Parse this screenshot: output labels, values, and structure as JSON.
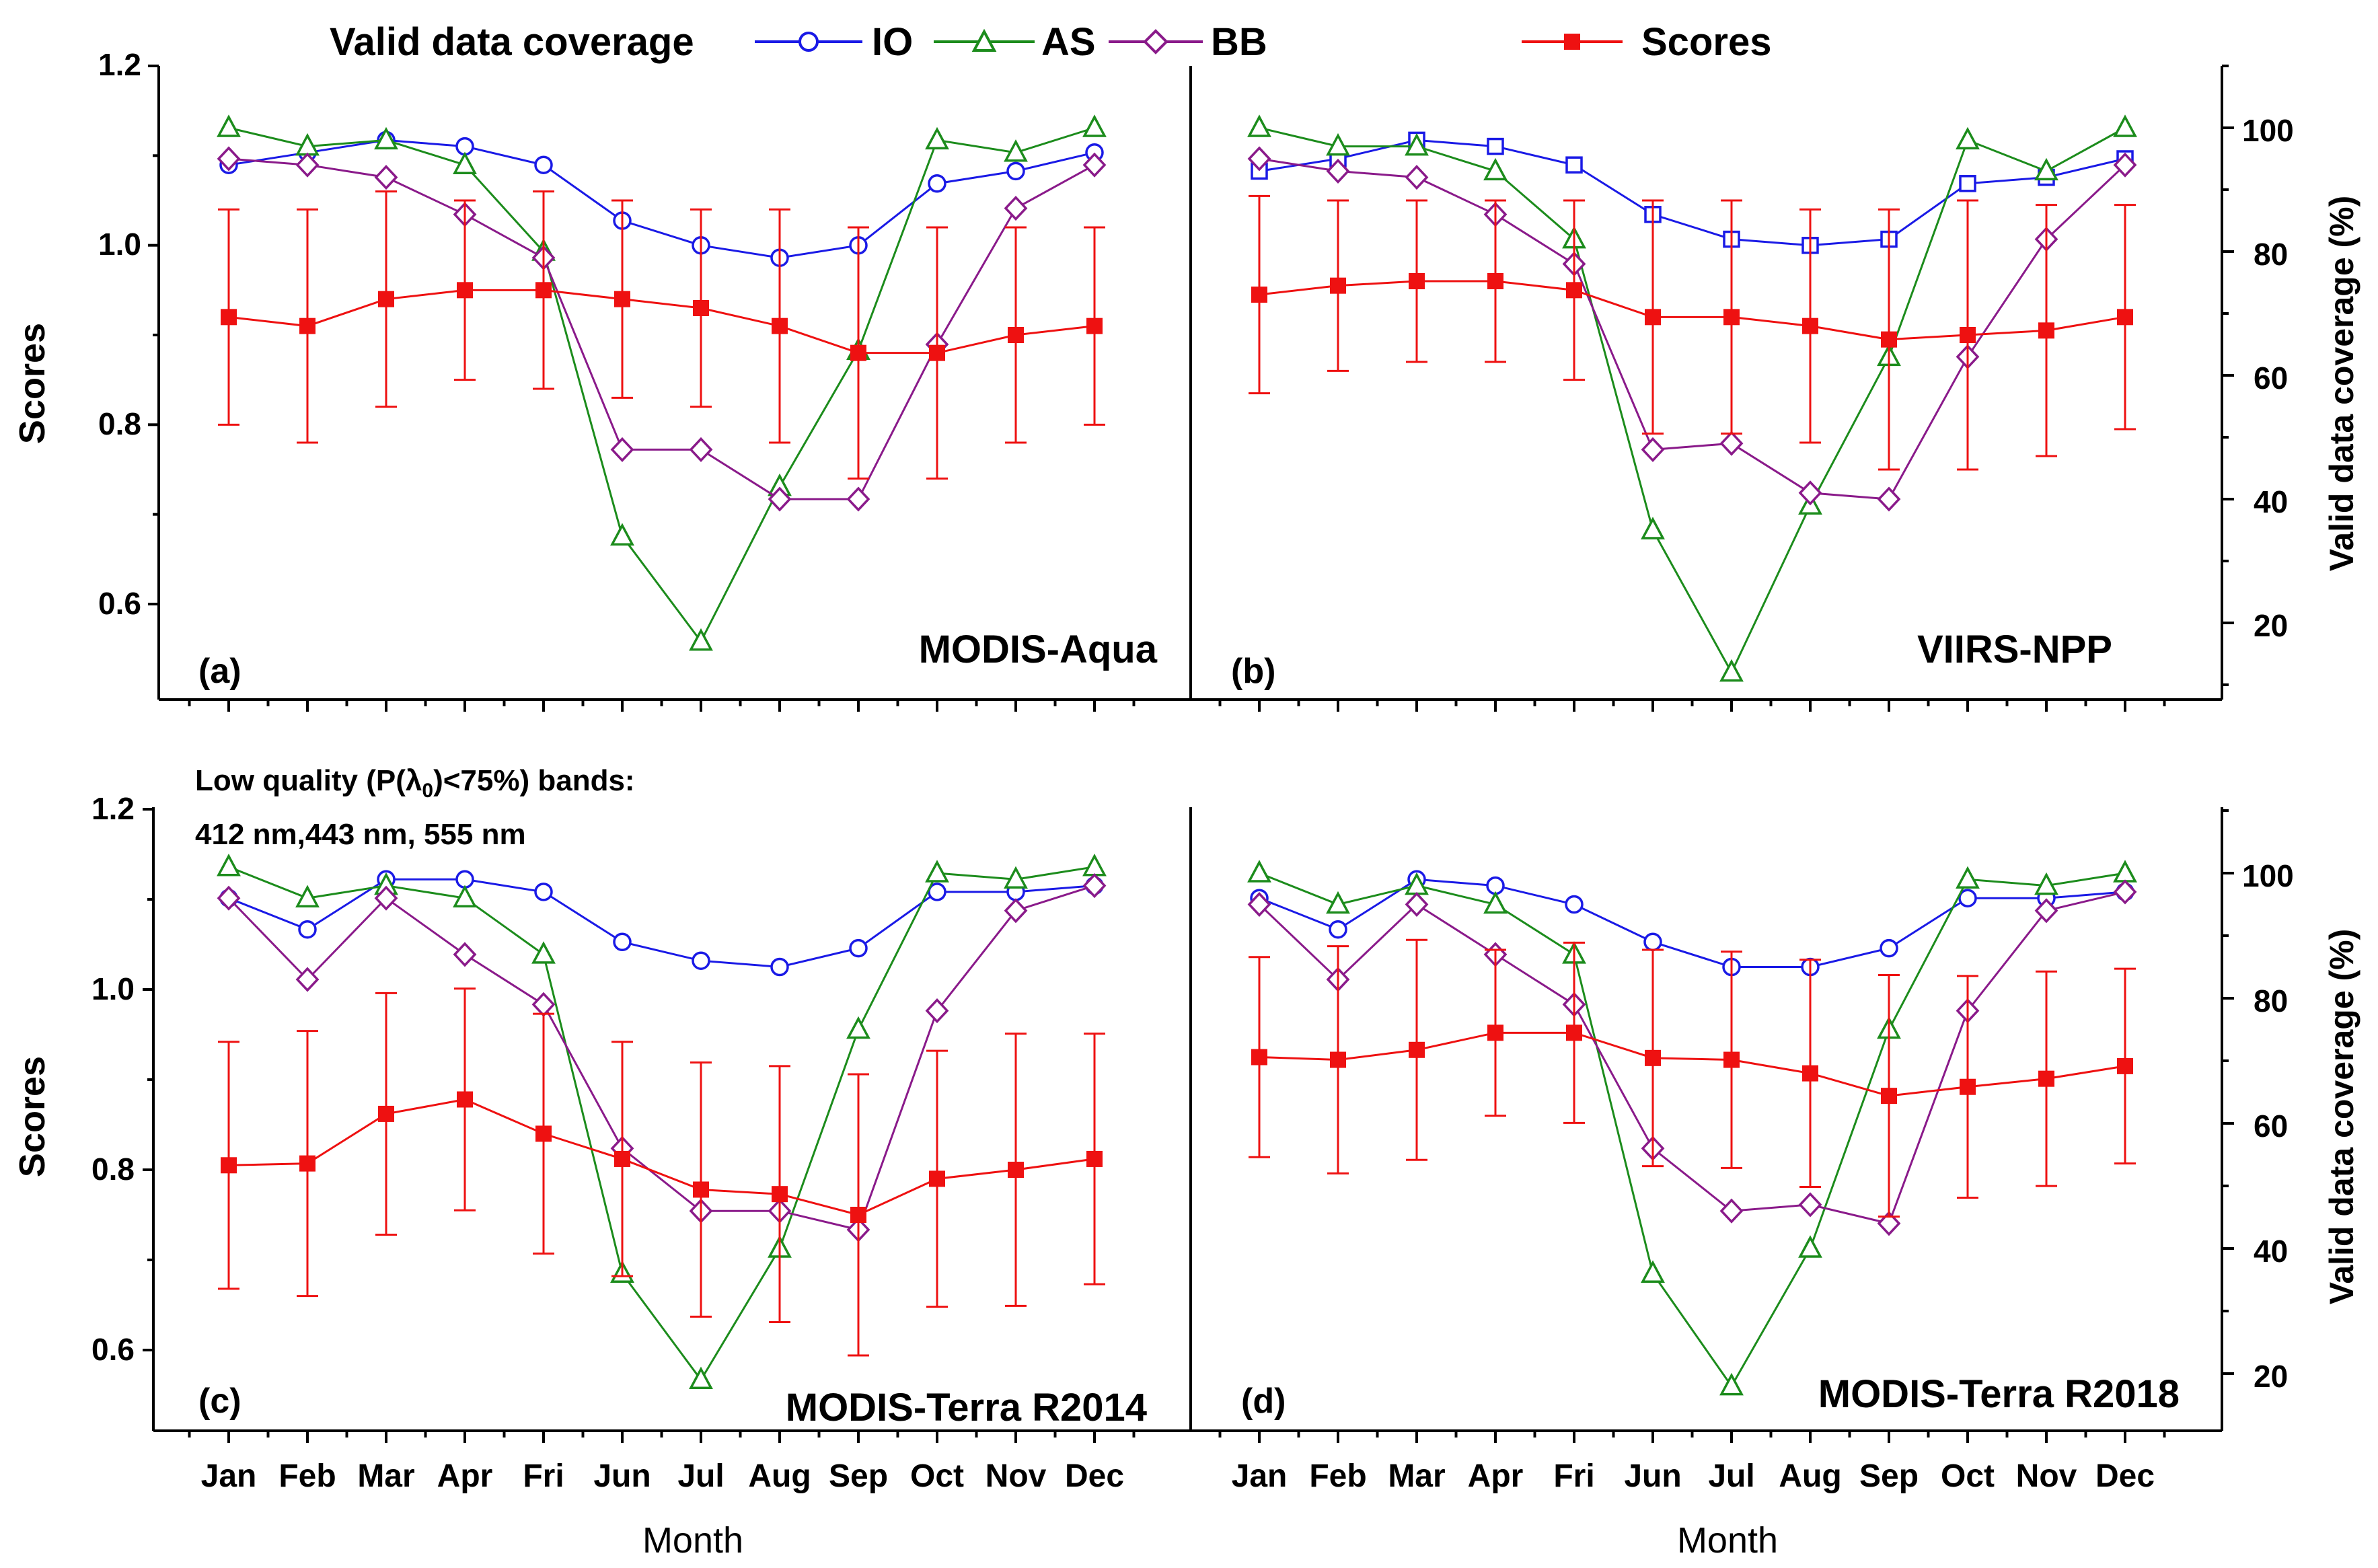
{
  "legend": {
    "coverage_label": "Valid data coverage",
    "scores_label": "Scores",
    "series": [
      {
        "key": "IO",
        "label": "IO",
        "color": "#1a1ae6",
        "marker": "circle"
      },
      {
        "key": "AS",
        "label": "AS",
        "color": "#1c8c1c",
        "marker": "triangle"
      },
      {
        "key": "BB",
        "label": "BB",
        "color": "#8a1a8a",
        "marker": "diamond"
      }
    ],
    "scores_color": "#ee1111"
  },
  "axes": {
    "left_label": "Scores",
    "right_label": "Valid data coverage (%)",
    "x_label": "Month",
    "left_ticks": [
      "0.6",
      "0.8",
      "1.0",
      "1.2"
    ],
    "right_ticks": [
      "20",
      "40",
      "60",
      "80",
      "100"
    ]
  },
  "months": [
    "Jan",
    "Feb",
    "Mar",
    "Apr",
    "Fri",
    "Jun",
    "Jul",
    "Aug",
    "Sep",
    "Oct",
    "Nov",
    "Dec"
  ],
  "note": {
    "line1_prefix": "Low quality (P(",
    "lambda": "λ",
    "subscript": "0",
    "line1_suffix": ")<75%) bands:",
    "line2": "412 nm,443 nm, 555 nm"
  },
  "chart_data": [
    {
      "type": "line",
      "panel": "(a)",
      "title": "MODIS-Aqua",
      "categories": [
        "Jan",
        "Feb",
        "Mar",
        "Apr",
        "Fri",
        "Jun",
        "Jul",
        "Aug",
        "Sep",
        "Oct",
        "Nov",
        "Dec"
      ],
      "ylim_left": [
        0.5,
        1.2
      ],
      "ylim_right": [
        10,
        110
      ],
      "scores": {
        "values": [
          0.92,
          0.91,
          0.94,
          0.95,
          0.95,
          0.94,
          0.93,
          0.91,
          0.88,
          0.88,
          0.9,
          0.91
        ],
        "error": [
          0.12,
          0.13,
          0.12,
          0.1,
          0.11,
          0.11,
          0.11,
          0.13,
          0.14,
          0.14,
          0.12,
          0.11
        ]
      },
      "coverage": {
        "IO": [
          94,
          96,
          98,
          97,
          94,
          85,
          81,
          79,
          81,
          91,
          93,
          96
        ],
        "AS": [
          100,
          97,
          98,
          94,
          80,
          34,
          17,
          42,
          64,
          98,
          96,
          100
        ],
        "BB": [
          95,
          94,
          92,
          86,
          79,
          48,
          48,
          40,
          40,
          65,
          87,
          94
        ]
      }
    },
    {
      "type": "line",
      "panel": "(b)",
      "title": "VIIRS-NPP",
      "categories": [
        "Jan",
        "Feb",
        "Mar",
        "Apr",
        "Fri",
        "Jun",
        "Jul",
        "Aug",
        "Sep",
        "Oct",
        "Nov",
        "Dec"
      ],
      "ylim_left": [
        0.5,
        1.2
      ],
      "ylim_right": [
        10,
        110
      ],
      "scores": {
        "values": [
          0.945,
          0.955,
          0.96,
          0.96,
          0.95,
          0.92,
          0.92,
          0.91,
          0.895,
          0.9,
          0.905,
          0.92
        ],
        "error": [
          0.11,
          0.095,
          0.09,
          0.09,
          0.1,
          0.13,
          0.13,
          0.13,
          0.145,
          0.15,
          0.14,
          0.125
        ]
      },
      "coverage": {
        "IO": [
          93,
          95,
          98,
          97,
          94,
          86,
          82,
          81,
          82,
          91,
          92,
          95
        ],
        "AS": [
          100,
          97,
          97,
          93,
          82,
          35,
          12,
          39,
          63,
          98,
          93,
          100
        ],
        "BB": [
          95,
          93,
          92,
          86,
          78,
          48,
          49,
          41,
          40,
          63,
          82,
          94
        ]
      }
    },
    {
      "type": "line",
      "panel": "(c)",
      "title": "MODIS-Terra R2014",
      "categories": [
        "Jan",
        "Feb",
        "Mar",
        "Apr",
        "Fri",
        "Jun",
        "Jul",
        "Aug",
        "Sep",
        "Oct",
        "Nov",
        "Dec"
      ],
      "ylim_left": [
        0.5,
        1.2
      ],
      "ylim_right": [
        10,
        110
      ],
      "scores": {
        "values": [
          0.805,
          0.807,
          0.862,
          0.878,
          0.84,
          0.812,
          0.778,
          0.773,
          0.75,
          0.79,
          0.8,
          0.812
        ],
        "error": [
          0.137,
          0.147,
          0.134,
          0.123,
          0.133,
          0.13,
          0.141,
          0.142,
          0.156,
          0.142,
          0.151,
          0.139
        ]
      },
      "coverage": {
        "IO": [
          96,
          91,
          99,
          99,
          97,
          89,
          86,
          85,
          88,
          97,
          97,
          98
        ],
        "AS": [
          101,
          96,
          98,
          96,
          87,
          36,
          19,
          40,
          75,
          100,
          99,
          101
        ],
        "BB": [
          96,
          83,
          96,
          87,
          79,
          56,
          46,
          46,
          43,
          78,
          94,
          98
        ]
      }
    },
    {
      "type": "line",
      "panel": "(d)",
      "title": "MODIS-Terra R2018",
      "categories": [
        "Jan",
        "Feb",
        "Mar",
        "Apr",
        "Fri",
        "Jun",
        "Jul",
        "Aug",
        "Sep",
        "Oct",
        "Nov",
        "Dec"
      ],
      "ylim_left": [
        0.5,
        1.2
      ],
      "ylim_right": [
        10,
        110
      ],
      "scores": {
        "values": [
          0.925,
          0.922,
          0.933,
          0.952,
          0.952,
          0.924,
          0.922,
          0.907,
          0.882,
          0.892,
          0.901,
          0.915
        ],
        "error": [
          0.111,
          0.126,
          0.122,
          0.092,
          0.1,
          0.12,
          0.12,
          0.126,
          0.134,
          0.123,
          0.119,
          0.108
        ]
      },
      "coverage": {
        "IO": [
          96,
          91,
          99,
          98,
          95,
          89,
          85,
          85,
          88,
          96,
          96,
          97
        ],
        "AS": [
          100,
          95,
          98,
          95,
          87,
          36,
          18,
          40,
          75,
          99,
          98,
          100
        ],
        "BB": [
          95,
          83,
          95,
          87,
          79,
          56,
          46,
          47,
          44,
          78,
          94,
          97
        ]
      }
    }
  ]
}
